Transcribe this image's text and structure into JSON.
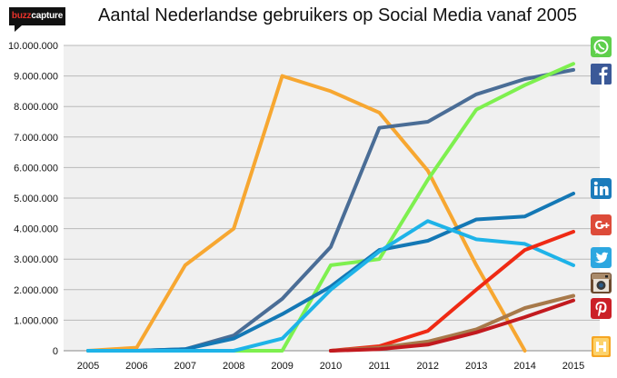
{
  "brand": {
    "logo_prefix": "buzz",
    "logo_suffix": "capture"
  },
  "colors": {
    "plot_bg": "#f0f0f0",
    "grid": "#b9b9b9",
    "whatsapp": "#63d44f",
    "facebook": "#4a6d96",
    "linkedin": "#1478b5",
    "googleplus": "#ea3a1c",
    "twitter": "#1eb3e8",
    "instagram": "#a7794a",
    "pinterest": "#c21a1f",
    "hyves": "#f7a731"
  },
  "chart_data": {
    "type": "line",
    "title": "Aantal Nederlandse gebruikers op Social Media vanaf 2005",
    "xlabel": "",
    "ylabel": "",
    "categories": [
      "2005",
      "2006",
      "2007",
      "2008",
      "2009",
      "2010",
      "2011",
      "2012",
      "2013",
      "2014",
      "2015"
    ],
    "ylim": [
      0,
      10000000
    ],
    "yticks": [
      "0",
      "1.000.000",
      "2.000.000",
      "3.000.000",
      "4.000.000",
      "5.000.000",
      "6.000.000",
      "7.000.000",
      "8.000.000",
      "9.000.000",
      "10.000.000"
    ],
    "grid": true,
    "legend": "icons at right end of lines",
    "series": [
      {
        "icon": "hyves-icon",
        "color": "#f7a731",
        "values": [
          0,
          100000,
          2800000,
          4000000,
          9000000,
          8500000,
          7800000,
          5900000,
          2800000,
          0,
          null
        ]
      },
      {
        "icon": "facebook-icon",
        "color": "#4a6d96",
        "values": [
          0,
          0,
          50000,
          500000,
          1700000,
          3400000,
          7300000,
          7500000,
          8400000,
          8900000,
          9200000
        ]
      },
      {
        "icon": "whatsapp-icon",
        "color": "#7ef04f",
        "values": [
          0,
          0,
          0,
          0,
          0,
          2800000,
          3000000,
          5600000,
          7900000,
          8700000,
          9400000
        ]
      },
      {
        "icon": "linkedin-icon",
        "color": "#1478b5",
        "values": [
          0,
          0,
          50000,
          400000,
          1200000,
          2100000,
          3300000,
          3600000,
          4300000,
          4400000,
          5150000
        ]
      },
      {
        "icon": "twitter-icon",
        "color": "#1eb3e8",
        "values": [
          0,
          0,
          0,
          0,
          400000,
          2000000,
          3250000,
          4250000,
          3650000,
          3500000,
          2800000
        ]
      },
      {
        "icon": "googleplus-icon",
        "color": "#ef2a14",
        "values": [
          null,
          null,
          null,
          null,
          null,
          0,
          150000,
          650000,
          2000000,
          3300000,
          3900000
        ]
      },
      {
        "icon": "instagram-icon",
        "color": "#a7794a",
        "values": [
          null,
          null,
          null,
          null,
          null,
          0,
          100000,
          300000,
          700000,
          1400000,
          1800000
        ]
      },
      {
        "icon": "pinterest-icon",
        "color": "#c21a1f",
        "values": [
          null,
          null,
          null,
          null,
          null,
          0,
          50000,
          200000,
          600000,
          1100000,
          1650000
        ]
      }
    ]
  }
}
